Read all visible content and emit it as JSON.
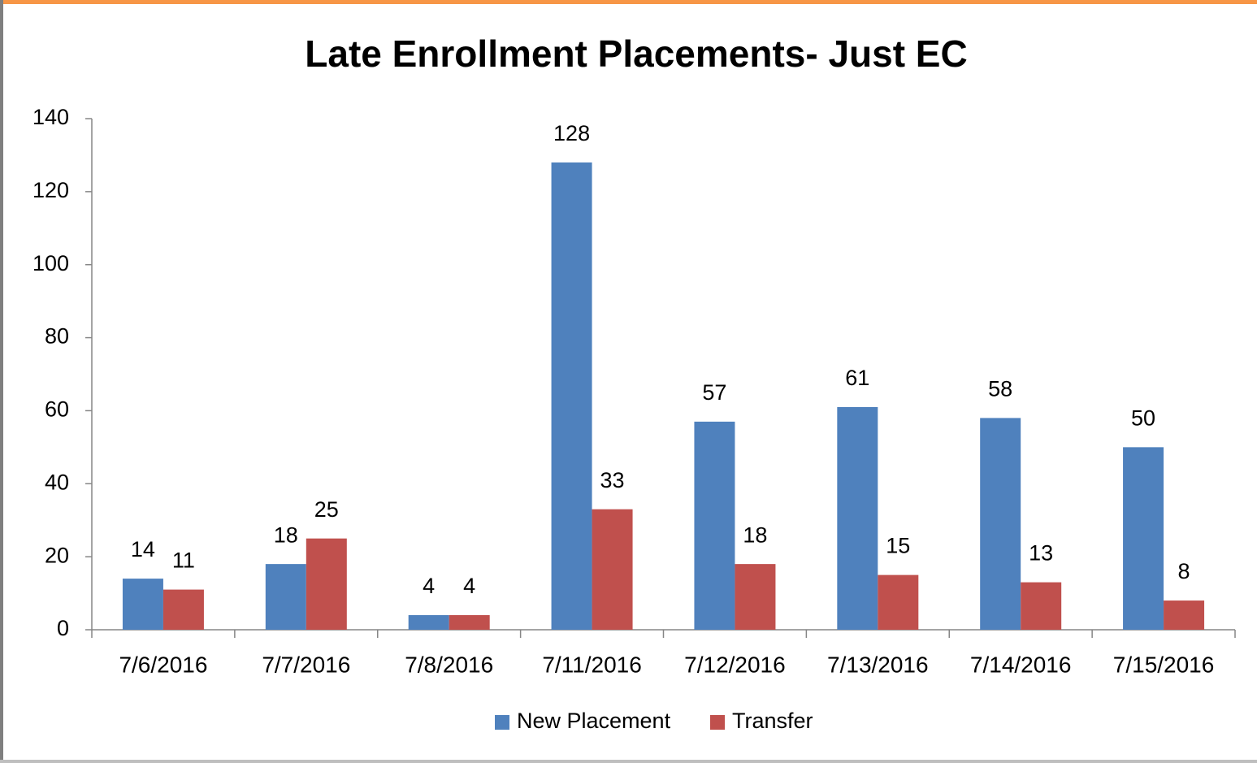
{
  "chart_data": {
    "type": "bar",
    "title": "Late Enrollment Placements- Just EC",
    "categories": [
      "7/6/2016",
      "7/7/2016",
      "7/8/2016",
      "7/11/2016",
      "7/12/2016",
      "7/13/2016",
      "7/14/2016",
      "7/15/2016"
    ],
    "series": [
      {
        "name": "New Placement",
        "color": "#4f81bd",
        "values": [
          14,
          18,
          4,
          128,
          57,
          61,
          58,
          50
        ]
      },
      {
        "name": "Transfer",
        "color": "#c0504d",
        "values": [
          11,
          25,
          4,
          33,
          18,
          15,
          13,
          8
        ]
      }
    ],
    "ylim": [
      0,
      140
    ],
    "yticks": [
      0,
      20,
      40,
      60,
      80,
      100,
      120,
      140
    ],
    "grid": false,
    "legend": "bottom"
  }
}
